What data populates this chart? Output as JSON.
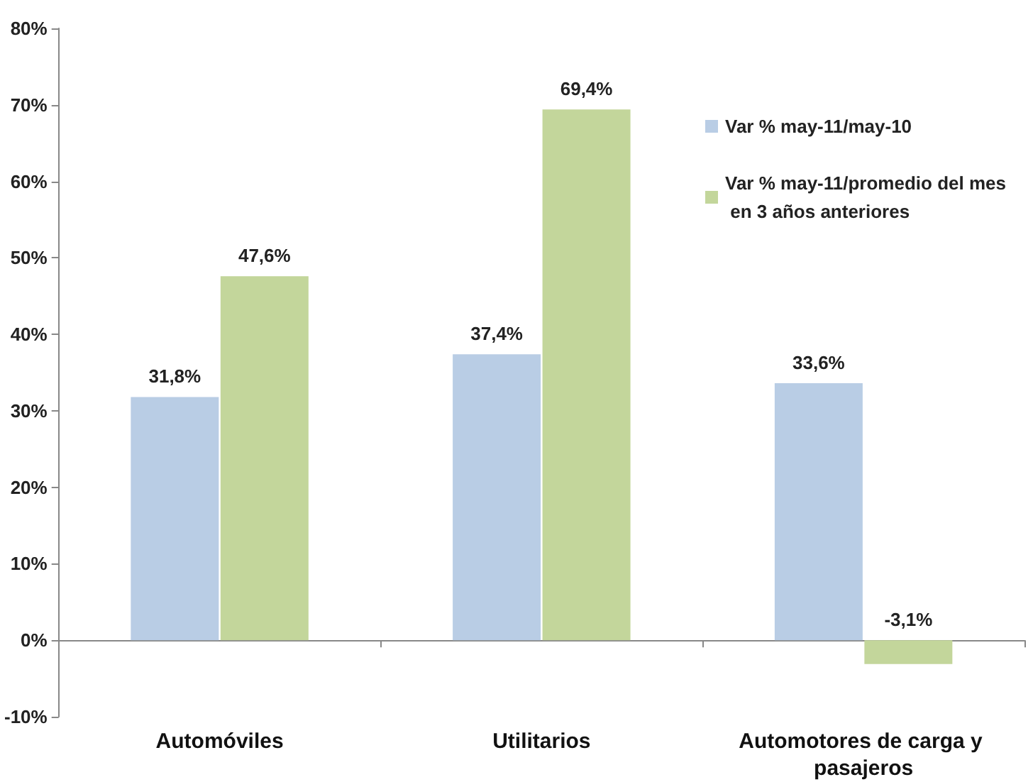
{
  "chart_data": {
    "type": "bar",
    "categories": [
      "Automóviles",
      "Utilitarios",
      "Automotores de carga y pasajeros"
    ],
    "series": [
      {
        "name": "Var % may-11/may-10",
        "color": "#b9cde5",
        "values": [
          31.8,
          37.4,
          33.6
        ],
        "value_labels": [
          "31,8%",
          "37,4%",
          "33,6%"
        ]
      },
      {
        "name": "Var % may-11/promedio del mes en 3 años anteriores",
        "color": "#c3d69b",
        "values": [
          47.6,
          69.4,
          -3.1
        ],
        "value_labels": [
          "47,6%",
          "69,4%",
          "-3,1%"
        ]
      }
    ],
    "ylim": [
      -10,
      80
    ],
    "yticks": [
      {
        "value": -10,
        "label": "-10%"
      },
      {
        "value": 0,
        "label": "0%"
      },
      {
        "value": 10,
        "label": "10%"
      },
      {
        "value": 20,
        "label": "20%"
      },
      {
        "value": 30,
        "label": "30%"
      },
      {
        "value": 40,
        "label": "40%"
      },
      {
        "value": 50,
        "label": "50%"
      },
      {
        "value": 60,
        "label": "60%"
      },
      {
        "value": 70,
        "label": "70%"
      },
      {
        "value": 80,
        "label": "80%"
      }
    ],
    "legend": "top right"
  }
}
